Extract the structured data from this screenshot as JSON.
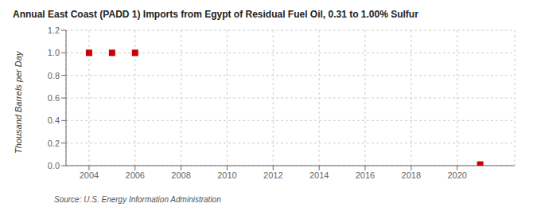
{
  "chart_data": {
    "type": "scatter",
    "title": "Annual East Coast (PADD 1) Imports from Egypt of Residual Fuel Oil, 0.31 to 1.00% Sulfur",
    "ylabel": "Thousand Barrels per Day",
    "annotations": [
      "Source: U.S. Energy Information Administration"
    ],
    "x": [
      2004,
      2005,
      2006,
      2021
    ],
    "values": [
      1.0,
      1.0,
      1.0,
      0.01
    ],
    "color": "#cc0000",
    "marker": "square",
    "xlim": [
      2003.0,
      2022.5
    ],
    "ylim": [
      0.0,
      1.2
    ],
    "xticks": [
      2004,
      2006,
      2008,
      2010,
      2012,
      2014,
      2016,
      2018,
      2020
    ],
    "yticks": [
      {
        "value": 0,
        "label": "0.0"
      },
      0.2,
      0.4,
      0.6,
      0.8,
      {
        "value": 1,
        "label": "1.0"
      },
      1.2
    ],
    "grid": true
  }
}
